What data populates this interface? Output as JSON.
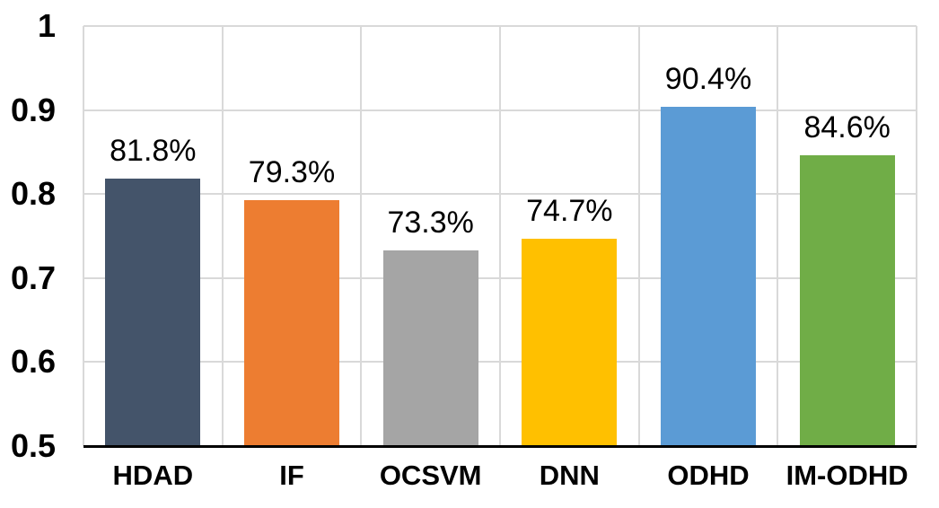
{
  "chart_data": {
    "type": "bar",
    "title": "",
    "xlabel": "",
    "ylabel": "",
    "categories": [
      "HDAD",
      "IF",
      "OCSVM",
      "DNN",
      "ODHD",
      "IM-ODHD"
    ],
    "values": [
      0.818,
      0.793,
      0.733,
      0.747,
      0.904,
      0.846
    ],
    "value_labels": [
      "81.8%",
      "79.3%",
      "73.3%",
      "74.7%",
      "90.4%",
      "84.6%"
    ],
    "bar_colors": [
      "#44546A",
      "#ED7D31",
      "#A5A5A5",
      "#FFC000",
      "#5B9BD5",
      "#70AD47"
    ],
    "ylim": [
      0.5,
      1.0
    ],
    "yticks": [
      1,
      0.9,
      0.8,
      0.7,
      0.6,
      0.5
    ],
    "ytick_labels": [
      "1",
      "0.9",
      "0.8",
      "0.7",
      "0.6",
      "0.5"
    ],
    "grid": true,
    "grid_horizontal": true,
    "grid_vertical_category_boundaries": true,
    "gridline_color": "#D9D9D9",
    "axis_line_color": "#000000",
    "background_color": "#FFFFFF",
    "text_color": "#000000",
    "legend": "none"
  }
}
